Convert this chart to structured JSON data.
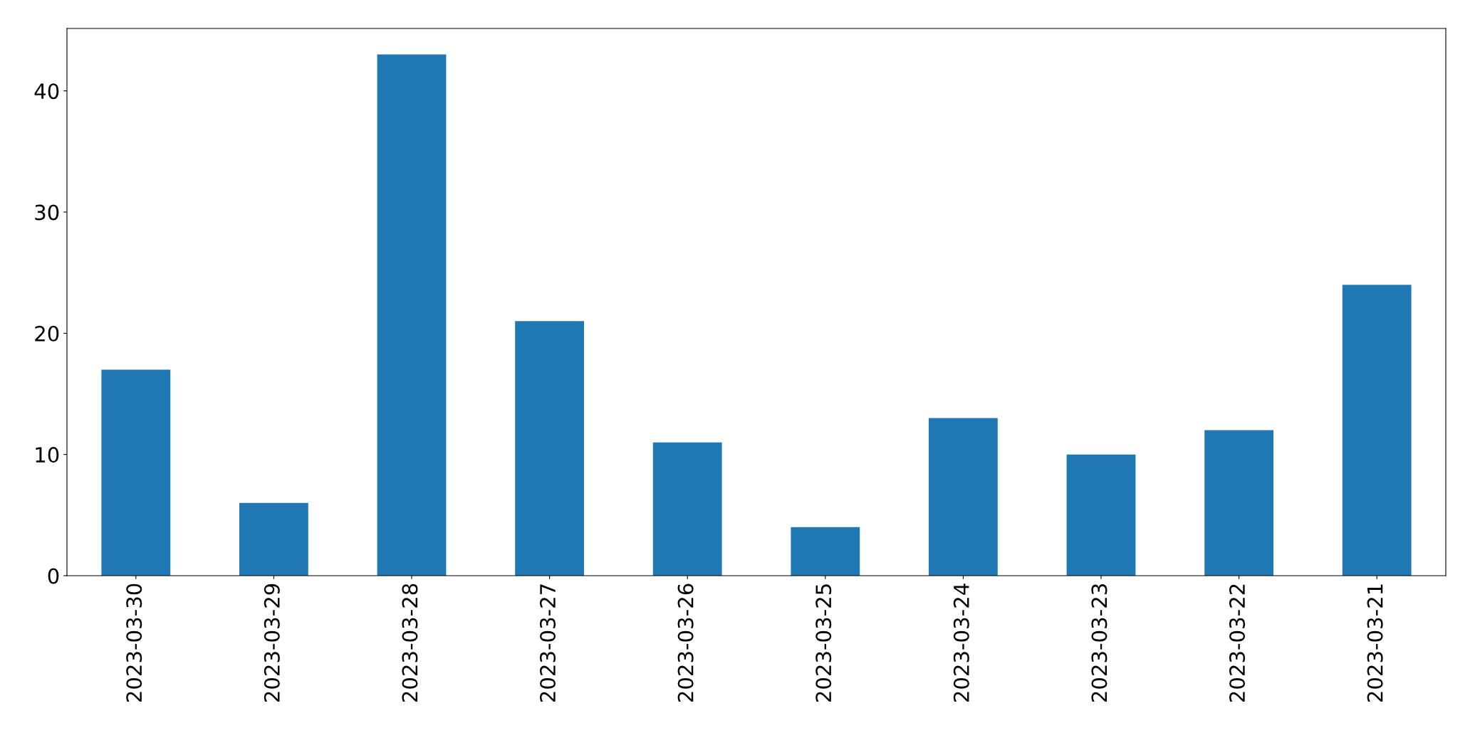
{
  "chart_data": {
    "type": "bar",
    "categories": [
      "2023-03-30",
      "2023-03-29",
      "2023-03-28",
      "2023-03-27",
      "2023-03-26",
      "2023-03-25",
      "2023-03-24",
      "2023-03-23",
      "2023-03-22",
      "2023-03-21"
    ],
    "values": [
      17,
      6,
      43,
      21,
      11,
      4,
      13,
      10,
      12,
      24
    ],
    "color": "#1f77b4",
    "ylim": [
      0,
      45.15
    ],
    "yticks": [
      0,
      10,
      20,
      30,
      40
    ],
    "grid": false,
    "legend": false
  }
}
